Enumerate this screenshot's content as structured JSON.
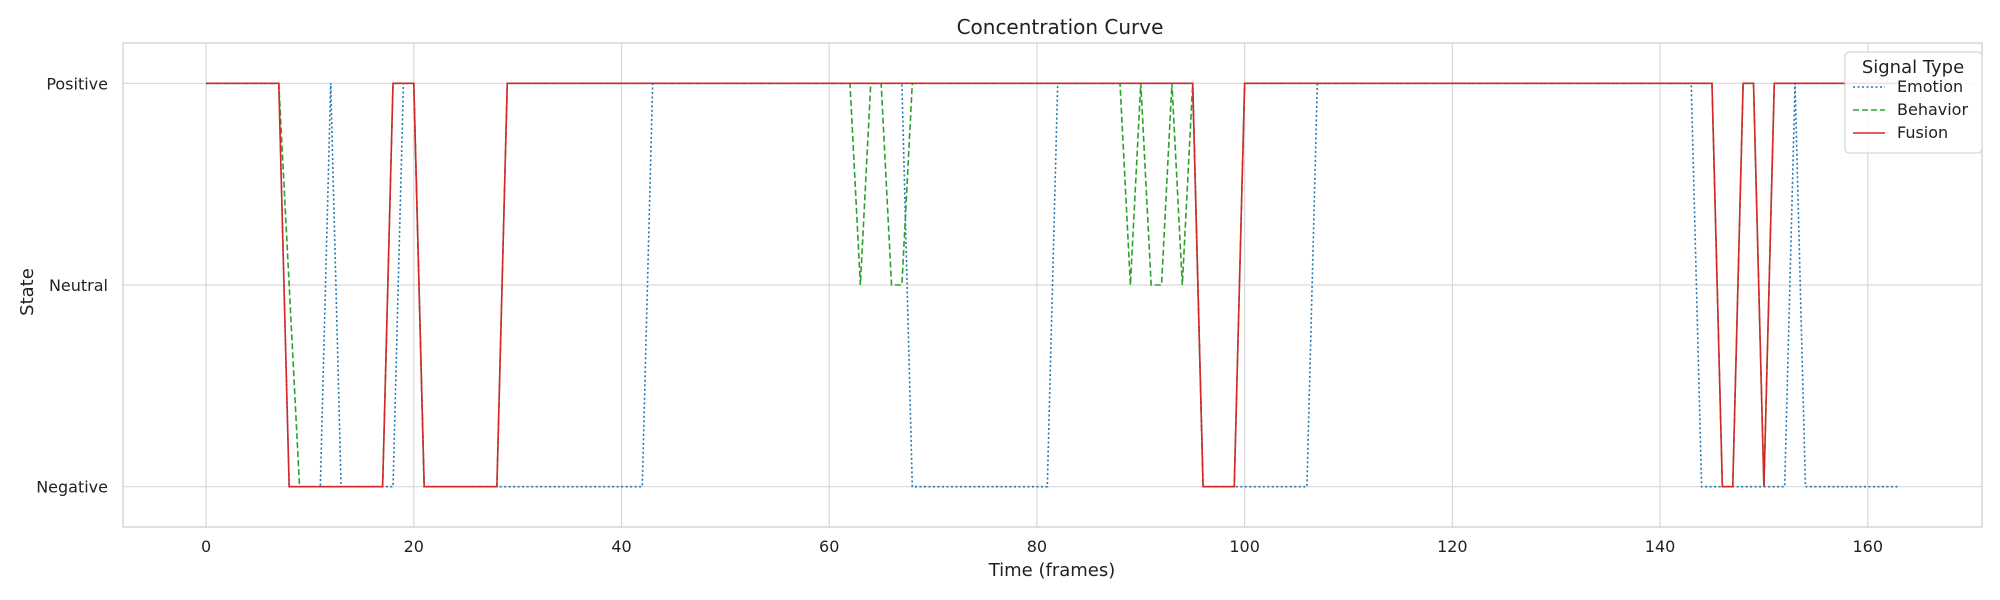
{
  "chart_data": {
    "type": "line",
    "title": "Concentration Curve",
    "xlabel": "Time (frames)",
    "ylabel": "State",
    "xlim": [
      -8,
      171
    ],
    "ylim": [
      -0.1,
      1.1
    ],
    "x_ticks": [
      0,
      20,
      40,
      60,
      80,
      100,
      120,
      140,
      160
    ],
    "y_ticks": [
      {
        "value": 0,
        "label": "Negative"
      },
      {
        "value": 0.5,
        "label": "Neutral"
      },
      {
        "value": 1,
        "label": "Positive"
      }
    ],
    "grid": true,
    "legend": {
      "title": "Signal Type",
      "placement": "top-right"
    },
    "series": [
      {
        "name": "Emotion",
        "color": "#1f77b4",
        "style": "dotted",
        "points": [
          [
            0,
            1
          ],
          [
            7,
            1
          ],
          [
            8,
            0
          ],
          [
            11,
            0
          ],
          [
            12,
            1
          ],
          [
            13,
            0
          ],
          [
            18,
            0
          ],
          [
            19,
            1
          ],
          [
            20,
            1
          ],
          [
            21,
            0
          ],
          [
            42,
            0
          ],
          [
            43,
            1
          ],
          [
            67,
            1
          ],
          [
            68,
            0
          ],
          [
            81,
            0
          ],
          [
            82,
            1
          ],
          [
            95,
            1
          ],
          [
            96,
            0
          ],
          [
            106,
            0
          ],
          [
            107,
            1
          ],
          [
            143,
            1
          ],
          [
            144,
            0
          ],
          [
            152,
            0
          ],
          [
            153,
            1
          ],
          [
            154,
            0
          ],
          [
            163,
            0
          ]
        ]
      },
      {
        "name": "Behavior",
        "color": "#2ca02c",
        "style": "dashed",
        "points": [
          [
            0,
            1
          ],
          [
            7,
            1
          ],
          [
            9,
            0
          ],
          [
            17,
            0
          ],
          [
            18,
            1
          ],
          [
            20,
            1
          ],
          [
            21,
            0
          ],
          [
            28,
            0
          ],
          [
            29,
            1
          ],
          [
            62,
            1
          ],
          [
            63,
            0.5
          ],
          [
            64,
            1
          ],
          [
            65,
            1
          ],
          [
            66,
            0.5
          ],
          [
            67,
            0.5
          ],
          [
            68,
            1
          ],
          [
            88,
            1
          ],
          [
            89,
            0.5
          ],
          [
            90,
            1
          ],
          [
            91,
            0.5
          ],
          [
            92,
            0.5
          ],
          [
            93,
            1
          ],
          [
            94,
            0.5
          ],
          [
            95,
            1
          ],
          [
            96,
            0
          ],
          [
            99,
            0
          ],
          [
            100,
            1
          ],
          [
            145,
            1
          ],
          [
            146,
            0
          ],
          [
            147,
            0
          ],
          [
            148,
            1
          ],
          [
            149,
            1
          ],
          [
            150,
            0
          ],
          [
            151,
            1
          ],
          [
            163,
            1
          ]
        ]
      },
      {
        "name": "Fusion",
        "color": "#d62728",
        "style": "solid",
        "points": [
          [
            0,
            1
          ],
          [
            7,
            1
          ],
          [
            8,
            0
          ],
          [
            17,
            0
          ],
          [
            18,
            1
          ],
          [
            20,
            1
          ],
          [
            21,
            0
          ],
          [
            28,
            0
          ],
          [
            29,
            1
          ],
          [
            95,
            1
          ],
          [
            96,
            0
          ],
          [
            99,
            0
          ],
          [
            100,
            1
          ],
          [
            145,
            1
          ],
          [
            146,
            0
          ],
          [
            147,
            0
          ],
          [
            148,
            1
          ],
          [
            149,
            1
          ],
          [
            150,
            0
          ],
          [
            151,
            1
          ],
          [
            163,
            1
          ]
        ]
      }
    ]
  }
}
